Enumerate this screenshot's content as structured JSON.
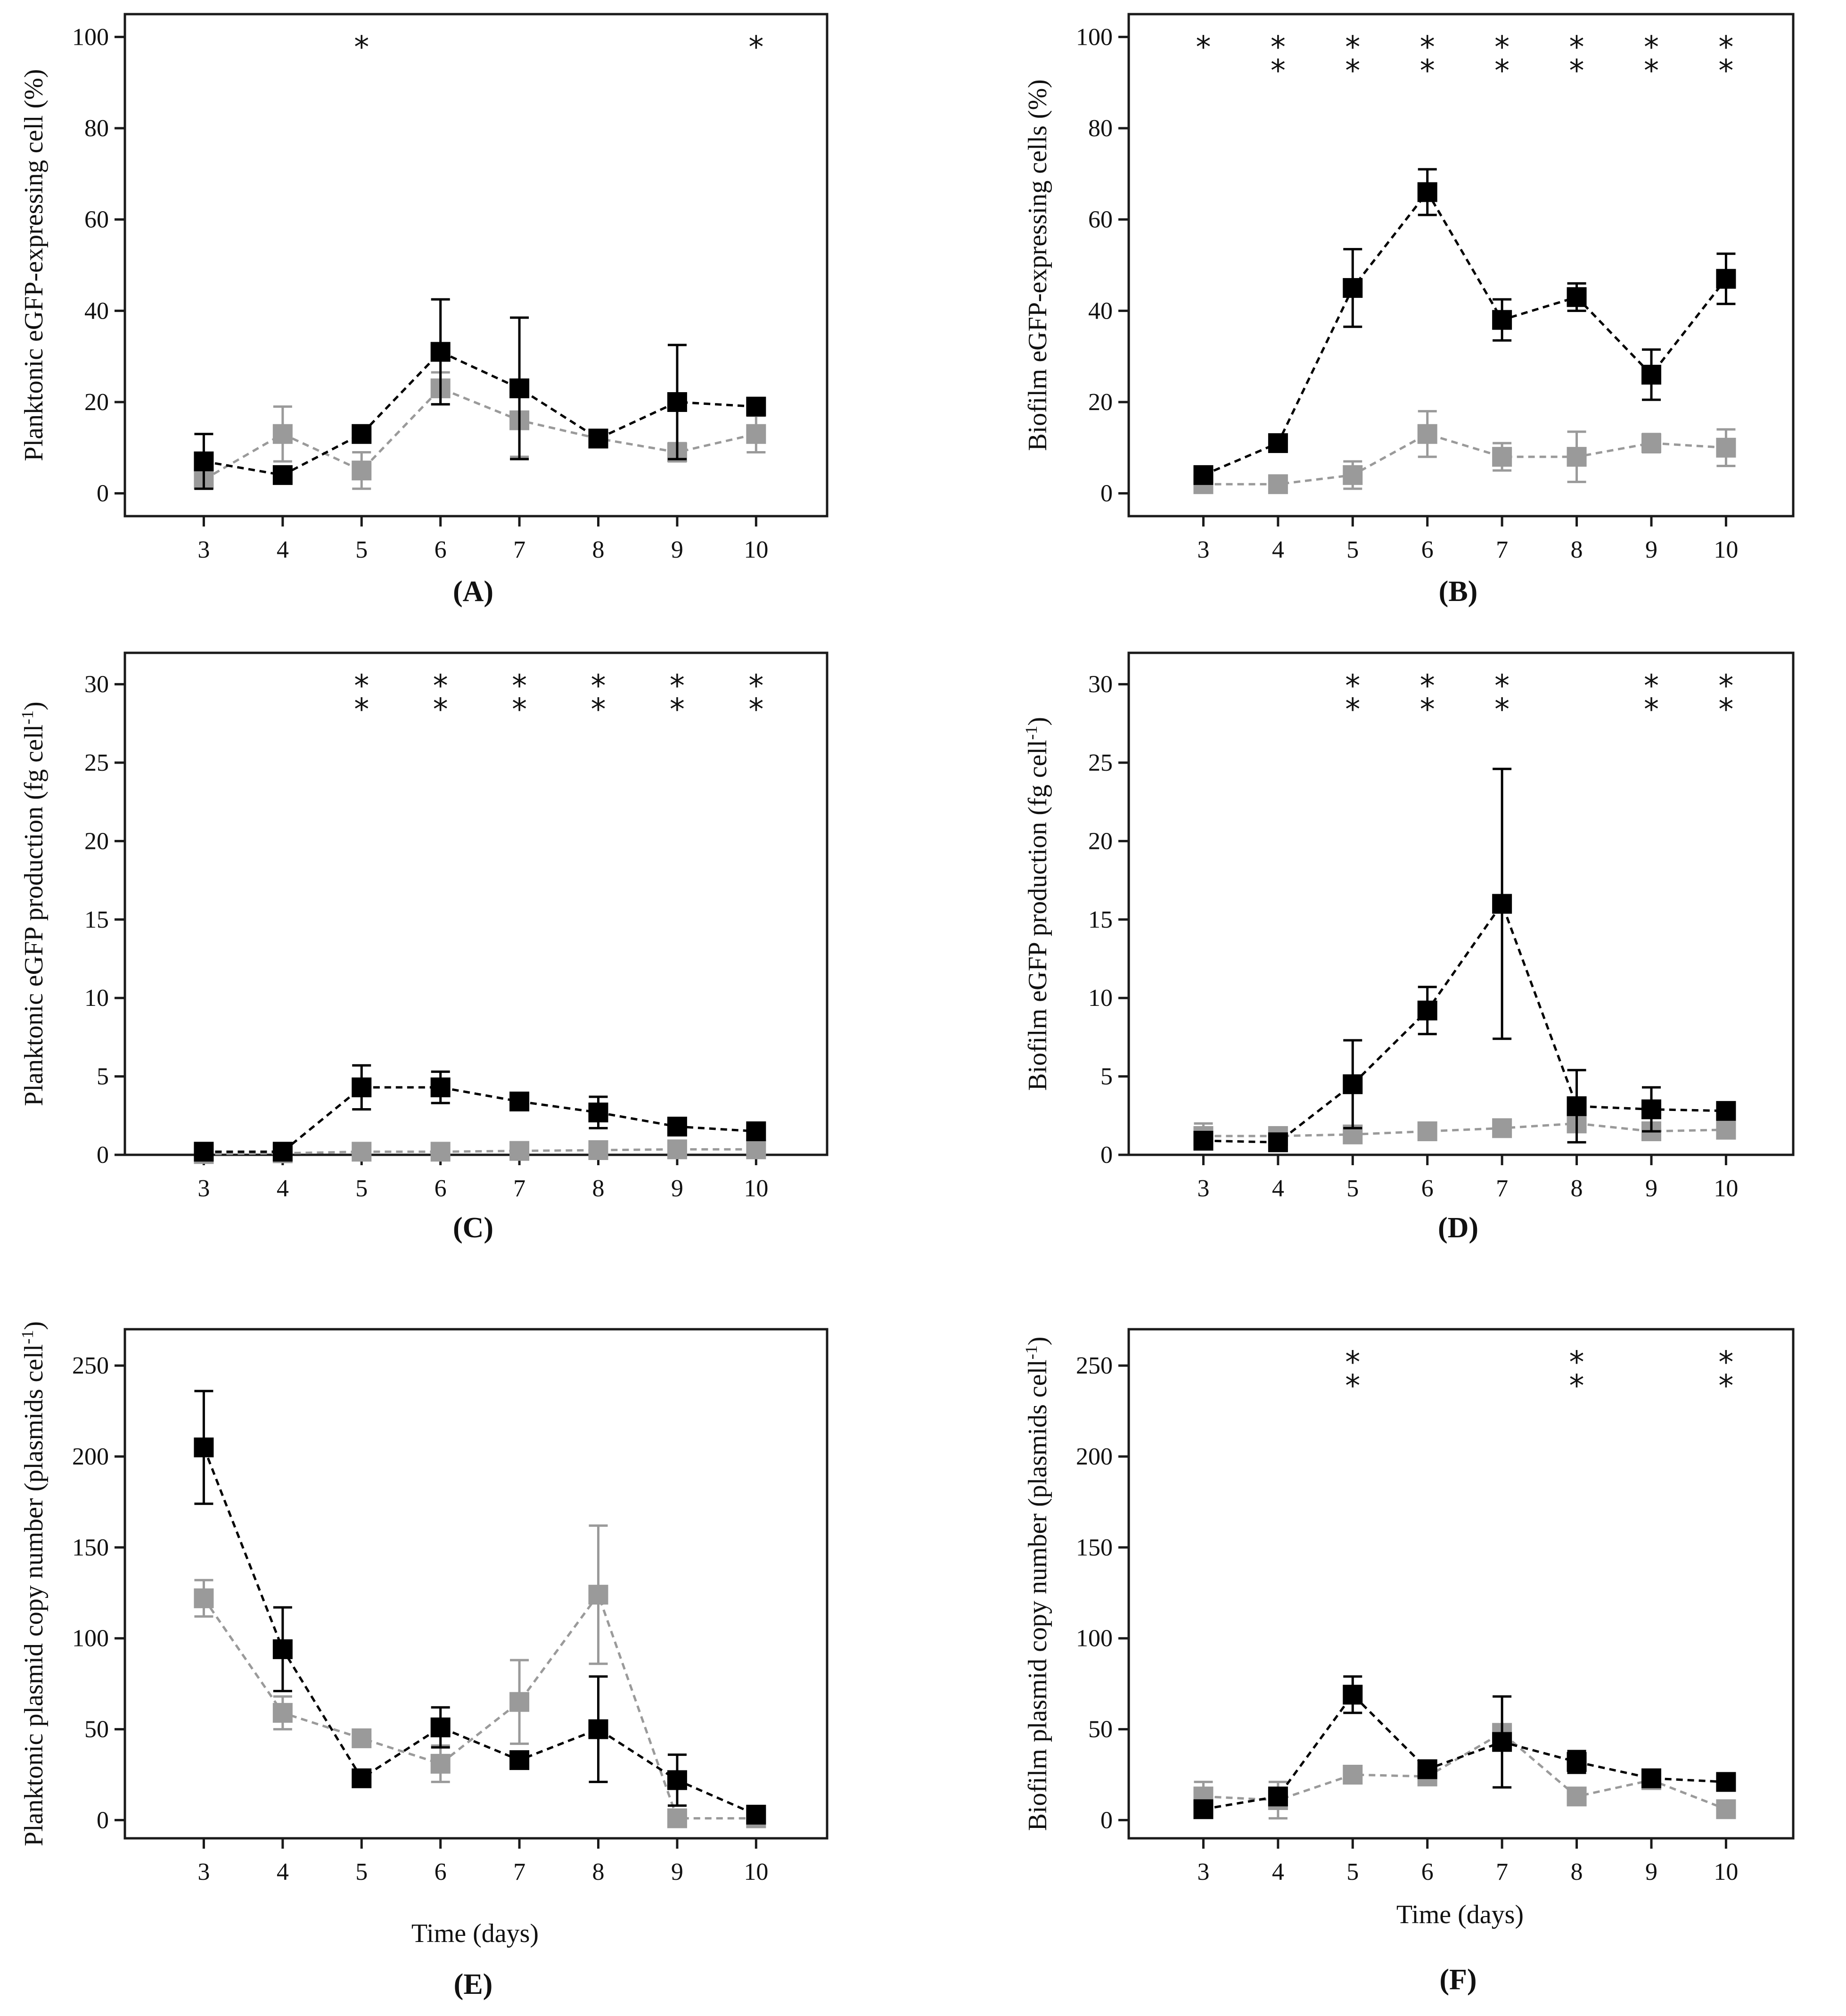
{
  "figure": {
    "colors": {
      "series1": "#000000",
      "series2": "#9a9a9a",
      "axis": "#1a1a1a"
    }
  },
  "chart_data": [
    {
      "id": "A",
      "type": "line",
      "panel_label": "(A)",
      "ylabel": "Planktonic eGFP-expressing cell (%)",
      "xlabel": "",
      "ylim": [
        -5,
        105
      ],
      "yticks": [
        0,
        20,
        40,
        60,
        80,
        100
      ],
      "x": [
        3,
        4,
        5,
        6,
        7,
        8,
        9,
        10
      ],
      "series": [
        {
          "name": "series-black",
          "color": "#000000",
          "values": [
            7,
            4,
            13,
            31,
            23,
            12,
            20,
            19
          ],
          "errors": [
            6,
            0,
            0,
            11.5,
            15.5,
            0,
            12.5,
            0
          ]
        },
        {
          "name": "series-gray",
          "color": "#9a9a9a",
          "values": [
            3,
            13,
            5,
            23,
            16,
            12,
            9,
            13
          ],
          "errors": [
            2,
            6,
            4,
            3.5,
            8,
            0,
            2,
            4
          ]
        }
      ],
      "significance": [
        {
          "x": 5,
          "count": 1
        },
        {
          "x": 10,
          "count": 1
        }
      ]
    },
    {
      "id": "B",
      "type": "line",
      "panel_label": "(B)",
      "ylabel": "Biofilm eGFP-expressing cells (%)",
      "xlabel": "",
      "ylim": [
        -5,
        105
      ],
      "yticks": [
        0,
        20,
        40,
        60,
        80,
        100
      ],
      "x": [
        3,
        4,
        5,
        6,
        7,
        8,
        9,
        10
      ],
      "series": [
        {
          "name": "series-black",
          "color": "#000000",
          "values": [
            4,
            11,
            45,
            66,
            38,
            43,
            26,
            47
          ],
          "errors": [
            0,
            0,
            8.5,
            5,
            4.5,
            3,
            5.5,
            5.5
          ]
        },
        {
          "name": "series-gray",
          "color": "#9a9a9a",
          "values": [
            2,
            2,
            4,
            13,
            8,
            8,
            11,
            10
          ],
          "errors": [
            0,
            0,
            3,
            5,
            3,
            5.5,
            2,
            4
          ]
        }
      ],
      "significance": [
        {
          "x": 3,
          "count": 1
        },
        {
          "x": 4,
          "count": 2
        },
        {
          "x": 5,
          "count": 2
        },
        {
          "x": 6,
          "count": 2
        },
        {
          "x": 7,
          "count": 2
        },
        {
          "x": 8,
          "count": 2
        },
        {
          "x": 9,
          "count": 2
        },
        {
          "x": 10,
          "count": 2
        }
      ]
    },
    {
      "id": "C",
      "type": "line",
      "panel_label": "(C)",
      "ylabel": "Planktonic eGFP production (fg cell",
      "ylabel_sup": "-1",
      "ylabel_end": ")",
      "xlabel": "",
      "ylim": [
        0,
        32
      ],
      "yticks": [
        0,
        5,
        10,
        15,
        20,
        25,
        30
      ],
      "x": [
        3,
        4,
        5,
        6,
        7,
        8,
        9,
        10
      ],
      "series": [
        {
          "name": "series-black",
          "color": "#000000",
          "values": [
            0.2,
            0.2,
            4.3,
            4.3,
            3.4,
            2.7,
            1.8,
            1.5
          ],
          "errors": [
            0,
            0,
            1.4,
            1.0,
            0.5,
            1.0,
            0,
            0
          ]
        },
        {
          "name": "series-gray",
          "color": "#9a9a9a",
          "values": [
            0.05,
            0.1,
            0.2,
            0.2,
            0.25,
            0.3,
            0.35,
            0.35
          ],
          "errors": [
            0,
            0,
            0,
            0,
            0,
            0,
            0,
            0
          ]
        }
      ],
      "significance": [
        {
          "x": 5,
          "count": 2
        },
        {
          "x": 6,
          "count": 2
        },
        {
          "x": 7,
          "count": 2
        },
        {
          "x": 8,
          "count": 2
        },
        {
          "x": 9,
          "count": 2
        },
        {
          "x": 10,
          "count": 2
        }
      ]
    },
    {
      "id": "D",
      "type": "line",
      "panel_label": "(D)",
      "ylabel": "Biofilm eGFP production (fg cell",
      "ylabel_sup": "-1",
      "ylabel_end": ")",
      "xlabel": "",
      "ylim": [
        0,
        32
      ],
      "yticks": [
        0,
        5,
        10,
        15,
        20,
        25,
        30
      ],
      "x": [
        3,
        4,
        5,
        6,
        7,
        8,
        9,
        10
      ],
      "series": [
        {
          "name": "series-black",
          "color": "#000000",
          "values": [
            0.9,
            0.8,
            4.5,
            9.2,
            16,
            3.1,
            2.9,
            2.8
          ],
          "errors": [
            0,
            0,
            2.8,
            1.5,
            8.6,
            2.3,
            1.4,
            0
          ]
        },
        {
          "name": "series-gray",
          "color": "#9a9a9a",
          "values": [
            1.2,
            1.2,
            1.3,
            1.5,
            1.7,
            2.0,
            1.5,
            1.6
          ],
          "errors": [
            0.8,
            0,
            0,
            0,
            0,
            0,
            0,
            0
          ]
        }
      ],
      "significance": [
        {
          "x": 5,
          "count": 2
        },
        {
          "x": 6,
          "count": 2
        },
        {
          "x": 7,
          "count": 2
        },
        {
          "x": 9,
          "count": 2
        },
        {
          "x": 10,
          "count": 2
        }
      ]
    },
    {
      "id": "E",
      "type": "line",
      "panel_label": "(E)",
      "ylabel": "Planktonic plasmid copy number (plasmids cell",
      "ylabel_sup": "-1",
      "ylabel_end": ")",
      "xlabel": "Time (days)",
      "ylim": [
        -10,
        270
      ],
      "yticks": [
        0,
        50,
        100,
        150,
        200,
        250
      ],
      "x": [
        3,
        4,
        5,
        6,
        7,
        8,
        9,
        10
      ],
      "series": [
        {
          "name": "series-black",
          "color": "#000000",
          "values": [
            205,
            94,
            23,
            51,
            33,
            50,
            22,
            3
          ],
          "errors": [
            31,
            23,
            0,
            11,
            0,
            29,
            14,
            0
          ]
        },
        {
          "name": "series-gray",
          "color": "#9a9a9a",
          "values": [
            122,
            59,
            45,
            31,
            65,
            124,
            1,
            1
          ],
          "errors": [
            10,
            9,
            0,
            10,
            23,
            38,
            0,
            0
          ]
        }
      ],
      "significance": []
    },
    {
      "id": "F",
      "type": "line",
      "panel_label": "(F)",
      "ylabel": "Biofilm plasmid copy number (plasmids cell",
      "ylabel_sup": "-1",
      "ylabel_end": ")",
      "xlabel": "Time (days)",
      "ylim": [
        -10,
        270
      ],
      "yticks": [
        0,
        50,
        100,
        150,
        200,
        250
      ],
      "x": [
        3,
        4,
        5,
        6,
        7,
        8,
        9,
        10
      ],
      "series": [
        {
          "name": "series-black",
          "color": "#000000",
          "values": [
            6,
            13,
            69,
            28,
            43,
            32,
            23,
            21
          ],
          "errors": [
            0,
            0,
            10,
            0,
            25,
            6,
            0,
            0
          ]
        },
        {
          "name": "series-gray",
          "color": "#9a9a9a",
          "values": [
            13,
            11,
            25,
            24,
            48,
            13,
            22,
            6
          ],
          "errors": [
            8,
            10,
            0,
            0,
            0,
            0,
            0,
            0
          ]
        }
      ],
      "significance": [
        {
          "x": 5,
          "count": 2
        },
        {
          "x": 8,
          "count": 2
        },
        {
          "x": 10,
          "count": 2
        }
      ]
    }
  ]
}
